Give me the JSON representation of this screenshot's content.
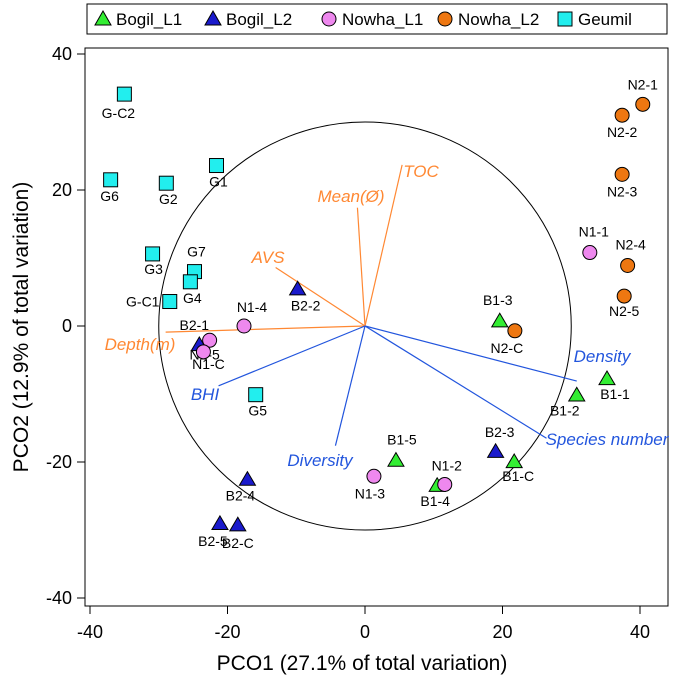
{
  "chart_data": {
    "type": "scatter",
    "xlabel": "PCO1 (27.1% of total variation)",
    "ylabel": "PCO2 (12.9% of total variation)",
    "xlim": [
      -40,
      40
    ],
    "ylim": [
      -40,
      40
    ],
    "xticks": [
      -40,
      -20,
      0,
      20,
      40
    ],
    "yticks": [
      -40,
      -20,
      0,
      20,
      40
    ],
    "circle_radius": 30,
    "legend_position": "top",
    "colors": {
      "triangle_green": "#33ee33",
      "triangle_blue": "#1a1acc",
      "circle_pink": "#ee88ee",
      "circle_orange": "#ee7711",
      "square_cyan": "#22eeee",
      "vector_orange": "#ff8833",
      "vector_blue": "#2255dd"
    },
    "series": [
      {
        "name": "Bogil_L1",
        "shape": "triangle",
        "color": "#33ee33",
        "points": [
          {
            "label": "B1-1",
            "x": 35.2,
            "y": -7.8
          },
          {
            "label": "B1-2",
            "x": 30.8,
            "y": -10.2
          },
          {
            "label": "B1-3",
            "x": 19.6,
            "y": 0.7
          },
          {
            "label": "B1-5",
            "x": 4.5,
            "y": -19.8
          },
          {
            "label": "B1-C",
            "x": 21.7,
            "y": -20
          },
          {
            "label": "B1-4",
            "x": 10.5,
            "y": -23.5
          }
        ]
      },
      {
        "name": "Bogil_L2",
        "shape": "triangle",
        "color": "#1a1acc",
        "points": [
          {
            "label": "B2-2",
            "x": -9.8,
            "y": 5.4
          },
          {
            "label": "B2-1",
            "x": -24.1,
            "y": -2.8
          },
          {
            "label": "B2-3",
            "x": 19,
            "y": -18.5
          },
          {
            "label": "B2-4",
            "x": -17.1,
            "y": -22.6
          },
          {
            "label": "B2-5",
            "x": -21.1,
            "y": -29.1
          },
          {
            "label": "B2-C",
            "x": -18.5,
            "y": -29.3
          }
        ]
      },
      {
        "name": "Nowha_L1",
        "shape": "circle",
        "color": "#ee88ee",
        "points": [
          {
            "label": "N1-1",
            "x": 32.7,
            "y": 10.8
          },
          {
            "label": "N1-4",
            "x": -17.6,
            "y": 0
          },
          {
            "label": "N1-5",
            "x": -22.6,
            "y": -2.1
          },
          {
            "label": "N1-C",
            "x": -23.5,
            "y": -3.8
          },
          {
            "label": "N1-3",
            "x": 1.3,
            "y": -22.1
          },
          {
            "label": "N1-2",
            "x": 11.6,
            "y": -23.3
          }
        ]
      },
      {
        "name": "Nowha_L2",
        "shape": "circle",
        "color": "#ee7711",
        "points": [
          {
            "label": "N2-1",
            "x": 40.4,
            "y": 32.6
          },
          {
            "label": "N2-2",
            "x": 37.4,
            "y": 31
          },
          {
            "label": "N2-3",
            "x": 37.4,
            "y": 22.3
          },
          {
            "label": "N2-4",
            "x": 38.2,
            "y": 8.9
          },
          {
            "label": "N2-5",
            "x": 37.7,
            "y": 4.4
          },
          {
            "label": "N2-C",
            "x": 21.8,
            "y": -0.7
          }
        ]
      },
      {
        "name": "Geumil",
        "shape": "square",
        "color": "#22eeee",
        "points": [
          {
            "label": "G-C2",
            "x": -35,
            "y": 34.1
          },
          {
            "label": "G1",
            "x": -21.6,
            "y": 23.6
          },
          {
            "label": "G6",
            "x": -37,
            "y": 21.5
          },
          {
            "label": "G2",
            "x": -28.9,
            "y": 21
          },
          {
            "label": "G3",
            "x": -30.9,
            "y": 10.6
          },
          {
            "label": "G7",
            "x": -24.8,
            "y": 8
          },
          {
            "label": "G4",
            "x": -25.4,
            "y": 6.5
          },
          {
            "label": "G-C1",
            "x": -28.4,
            "y": 3.6
          },
          {
            "label": "G5",
            "x": -15.9,
            "y": -10.1
          }
        ]
      }
    ],
    "vectors": [
      {
        "label": "TOC",
        "x": 5.4,
        "y": 23.7,
        "color": "#ff8833"
      },
      {
        "label": "Mean(Ø)",
        "x": -1.1,
        "y": 17.4,
        "color": "#ff8833"
      },
      {
        "label": "AVS",
        "x": -13,
        "y": 8.6,
        "color": "#ff8833"
      },
      {
        "label": "Depth(m)",
        "x": -29,
        "y": -0.9,
        "color": "#ff8833"
      },
      {
        "label": "Density",
        "x": 30.8,
        "y": -8.1,
        "color": "#2255dd"
      },
      {
        "label": "Species number",
        "x": 26.4,
        "y": -16.5,
        "color": "#2255dd"
      },
      {
        "label": "Diversity",
        "x": -4.3,
        "y": -17.6,
        "color": "#2255dd"
      },
      {
        "label": "BHI",
        "x": -21.3,
        "y": -8.8,
        "color": "#2255dd"
      }
    ]
  }
}
